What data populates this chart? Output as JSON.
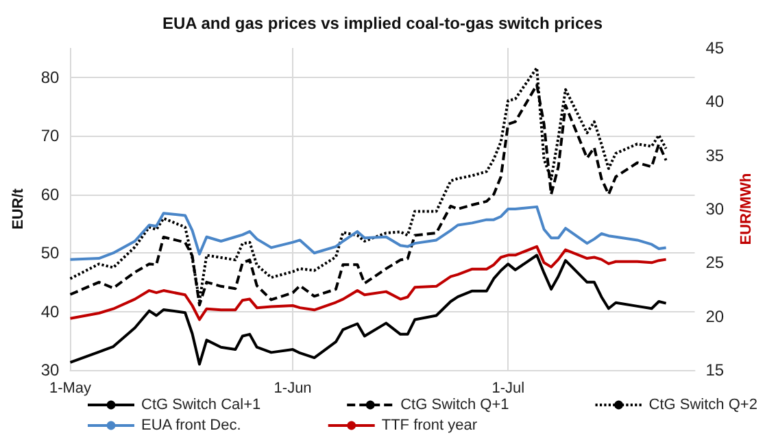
{
  "chart_data": {
    "type": "line",
    "title": "EUA and gas prices vs implied coal-to-gas switch prices",
    "ylabel": "EUR/t",
    "y2label": "EUR/MWh",
    "x": [
      "--05-01",
      "--05-05",
      "--05-07",
      "--05-10",
      "--05-12",
      "--05-13",
      "--05-14",
      "--05-17",
      "--05-18",
      "--05-19",
      "--05-20",
      "--05-22",
      "--05-24",
      "--05-25",
      "--05-26",
      "--05-27",
      "--05-29",
      "--06-01",
      "--06-02",
      "--06-04",
      "--06-07",
      "--06-08",
      "--06-10",
      "--06-11",
      "--06-14",
      "--06-16",
      "--06-17",
      "--06-18",
      "--06-21",
      "--06-23",
      "--06-24",
      "--06-26",
      "--06-28",
      "--06-29",
      "--06-30",
      "--07-01",
      "--07-02",
      "--07-05",
      "--07-06",
      "--07-07",
      "--07-08",
      "--07-09",
      "--07-12",
      "--07-13",
      "--07-14",
      "--07-15",
      "--07-16",
      "--07-19",
      "--07-21",
      "--07-22",
      "--07-23"
    ],
    "series": [
      {
        "name": "CtG Switch Cal+1",
        "color": "#000000",
        "line_style": "solid",
        "values": [
          31.3,
          33.1,
          34.0,
          37.2,
          40.1,
          39.3,
          40.3,
          39.8,
          36.2,
          31.0,
          35.1,
          33.9,
          33.5,
          35.8,
          36.1,
          33.9,
          33.0,
          33.5,
          32.9,
          32.1,
          34.8,
          36.9,
          37.9,
          35.8,
          38.0,
          36.1,
          36.1,
          38.6,
          39.3,
          41.7,
          42.5,
          43.5,
          43.5,
          45.6,
          47.0,
          48.1,
          47.1,
          49.6,
          46.6,
          43.8,
          46.0,
          48.7,
          45.0,
          45.0,
          42.5,
          40.5,
          41.5,
          40.9,
          40.5,
          41.7,
          41.4
        ]
      },
      {
        "name": "CtG Switch Q+1",
        "color": "#000000",
        "line_style": "dashed",
        "values": [
          42.9,
          45.0,
          44.0,
          46.7,
          48.1,
          48.0,
          52.7,
          51.8,
          49.5,
          41.1,
          45.0,
          44.3,
          43.9,
          48.3,
          48.8,
          44.4,
          42.0,
          43.2,
          44.4,
          42.6,
          43.8,
          48.0,
          48.0,
          44.8,
          47.3,
          48.8,
          49.0,
          53.0,
          53.4,
          58.0,
          57.5,
          58.2,
          58.8,
          60.0,
          63.0,
          72.0,
          72.4,
          78.7,
          72.0,
          60.0,
          64.7,
          75.2,
          66.2,
          68.0,
          62.7,
          60.0,
          63.0,
          65.4,
          64.7,
          68.6,
          65.8
        ]
      },
      {
        "name": "CtG Switch Q+2",
        "color": "#000000",
        "line_style": "dotted",
        "values": [
          45.6,
          48.1,
          47.5,
          51.0,
          54.4,
          54.0,
          55.9,
          54.4,
          49.1,
          41.8,
          49.6,
          49.2,
          48.8,
          51.6,
          51.8,
          47.9,
          45.8,
          46.8,
          47.3,
          47.0,
          49.3,
          53.5,
          53.0,
          52.0,
          53.4,
          53.6,
          53.0,
          57.1,
          57.1,
          62.3,
          62.7,
          63.2,
          63.9,
          66.0,
          69.0,
          76.0,
          76.3,
          81.6,
          66.0,
          62.6,
          69.7,
          77.9,
          70.5,
          72.4,
          68.6,
          64.4,
          67.0,
          68.6,
          68.2,
          70.1,
          67.8
        ]
      },
      {
        "name": "EUA front Dec.",
        "color": "#4a86c8",
        "line_style": "solid",
        "axis": "y2",
        "values": [
          25.3,
          25.4,
          25.9,
          27.0,
          28.5,
          28.4,
          29.6,
          29.4,
          28.0,
          25.8,
          27.4,
          27.0,
          27.4,
          27.6,
          27.9,
          27.2,
          26.4,
          26.9,
          27.1,
          25.9,
          26.5,
          27.0,
          27.9,
          27.3,
          27.4,
          26.6,
          26.5,
          26.8,
          27.1,
          28.0,
          28.5,
          28.7,
          29.0,
          29.0,
          29.3,
          30.0,
          30.0,
          30.2,
          28.1,
          27.3,
          27.3,
          28.2,
          26.8,
          27.2,
          27.7,
          27.5,
          27.4,
          27.1,
          26.7,
          26.3,
          26.4
        ]
      },
      {
        "name": "TTF front year",
        "color": "#c00000",
        "line_style": "solid",
        "axis": "y2",
        "values": [
          19.8,
          20.3,
          20.7,
          21.6,
          22.4,
          22.2,
          22.4,
          22.0,
          21.0,
          19.7,
          20.7,
          20.6,
          20.6,
          21.5,
          21.6,
          20.8,
          20.9,
          21.0,
          20.8,
          20.6,
          21.3,
          21.6,
          22.4,
          22.0,
          22.3,
          21.6,
          21.8,
          22.7,
          22.8,
          23.7,
          23.9,
          24.4,
          24.4,
          24.8,
          25.5,
          25.7,
          25.7,
          26.5,
          25.0,
          24.6,
          25.3,
          26.2,
          25.4,
          25.5,
          25.3,
          24.9,
          25.1,
          25.1,
          25.0,
          25.2,
          25.3
        ]
      }
    ],
    "xlim": [
      "--05-01",
      "--07-27"
    ],
    "xticks": [
      {
        "value": "--05-01",
        "label": "1-May"
      },
      {
        "value": "--06-01",
        "label": "1-Jun"
      },
      {
        "value": "--07-01",
        "label": "1-Jul"
      }
    ],
    "ylim": [
      30,
      85
    ],
    "yticks": [
      30,
      40,
      50,
      60,
      70,
      80
    ],
    "y2lim": [
      15,
      45
    ],
    "y2ticks": [
      15,
      20,
      25,
      30,
      35,
      40,
      45
    ],
    "grid": true,
    "legend": "bottom",
    "marker": "none"
  }
}
